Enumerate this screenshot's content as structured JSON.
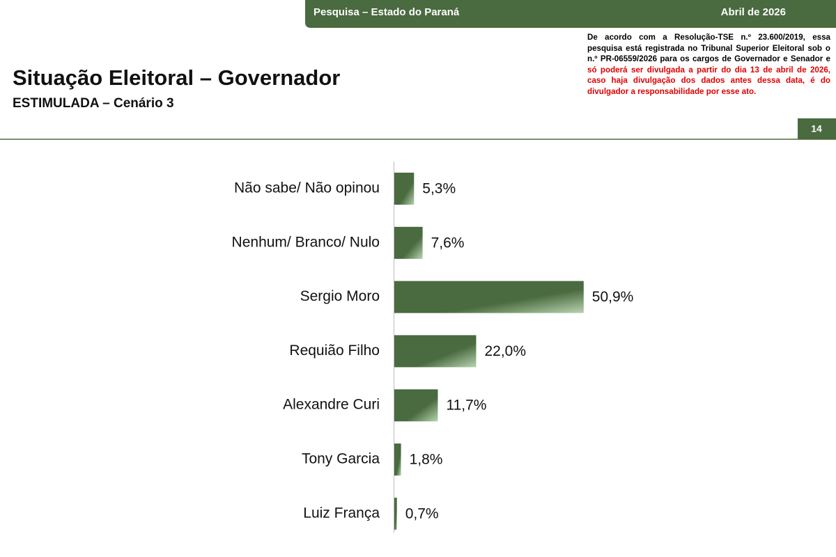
{
  "header": {
    "survey": "Pesquisa – Estado do Paraná",
    "date": "Abril de 2026",
    "page_number": "14"
  },
  "notice": {
    "text": "De acordo com a Resolução-TSE n.º 23.600/2019, essa pesquisa está registrada no Tribunal Superior Eleitoral sob o n.º PR-06559/2026 para os cargos de Governador e Senador e",
    "warning": "só poderá ser divulgada a partir do dia 13 de abril de 2026, caso haja divulgação dos dados antes dessa data, é do divulgador a responsabilidade por esse ato."
  },
  "chart_data": {
    "type": "hbar",
    "title": "Situação Eleitoral – Governador",
    "subtitle": "ESTIMULADA – Cenário 3",
    "categories": [
      "Não sabe/ Não opinou",
      "Nenhum/ Branco/ Nulo",
      "Sergio Moro",
      "Requião Filho",
      "Alexandre Curi",
      "Tony Garcia",
      "Luiz França"
    ],
    "values": [
      5.3,
      7.6,
      50.9,
      22.0,
      11.7,
      1.8,
      0.7
    ],
    "value_labels": [
      "5,3%",
      "7,6%",
      "50,9%",
      "22,0%",
      "11,7%",
      "1,8%",
      "0,7%"
    ],
    "color": "#4a6a3f"
  }
}
